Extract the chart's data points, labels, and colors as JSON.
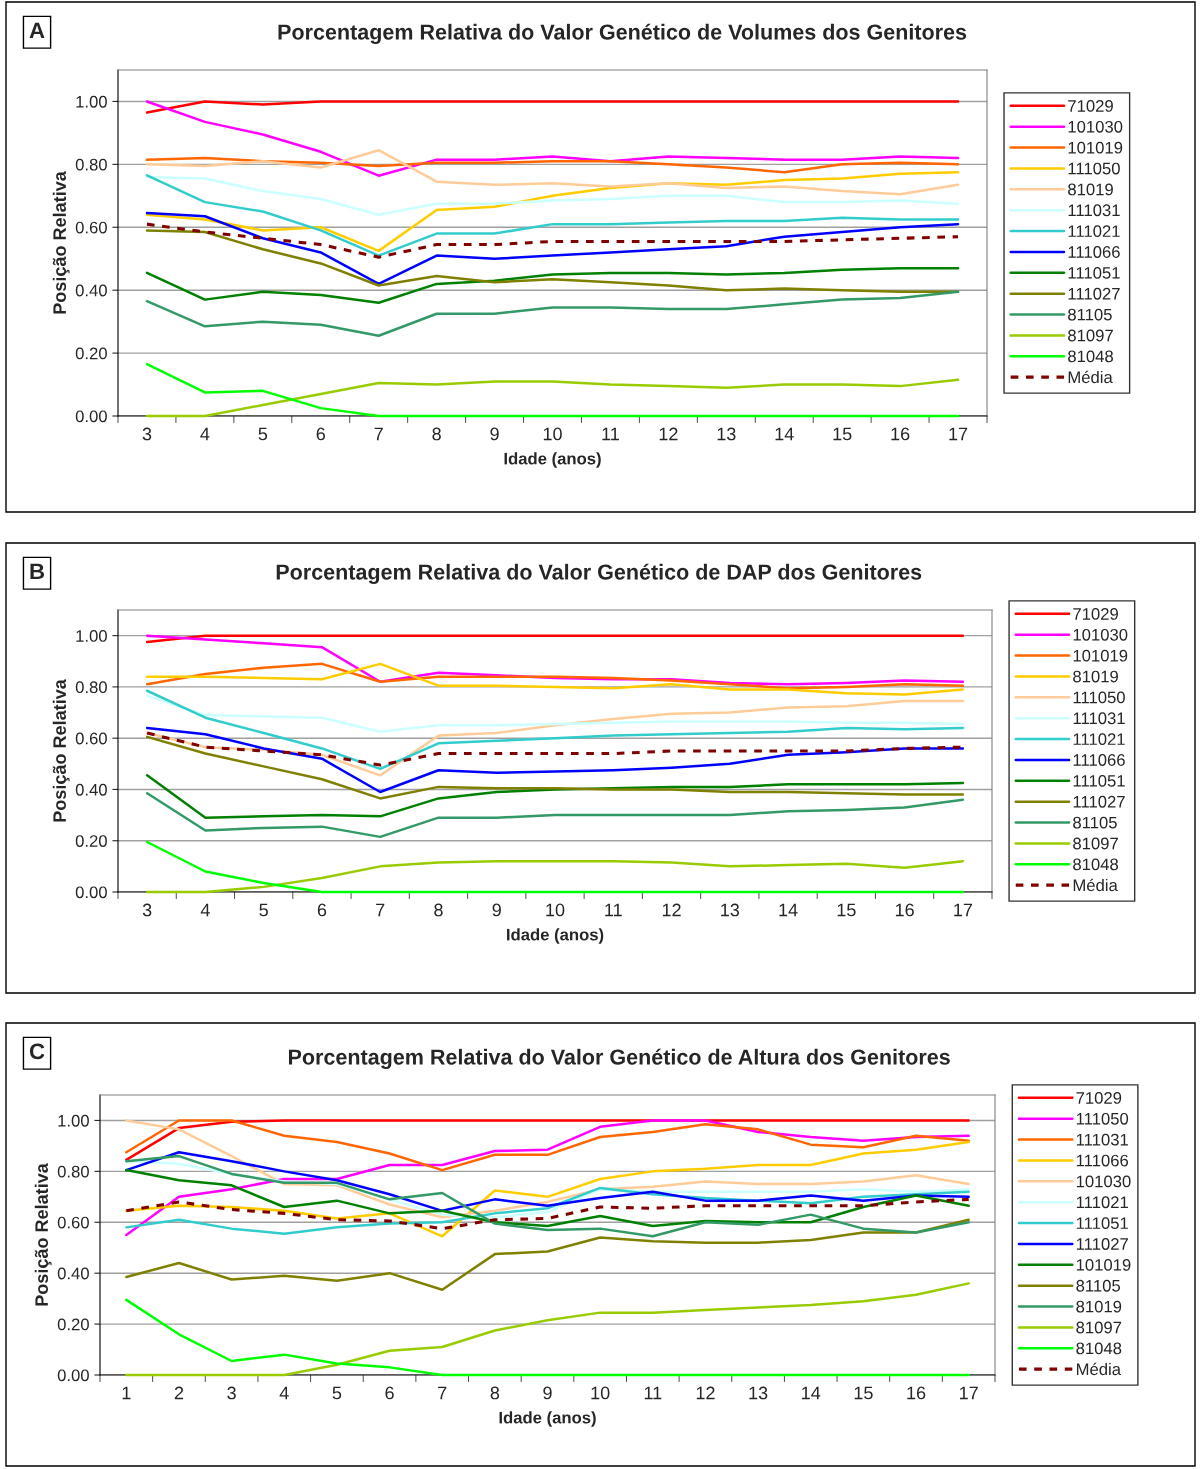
{
  "chart_data": [
    {
      "type": "line",
      "title": "Porcentagem Relativa do Valor Genético de Volumes dos Genitores",
      "xlabel": "Idade (anos)",
      "ylabel": "Posição Relativa",
      "annotations": [
        "A"
      ],
      "categories": [
        "3",
        "4",
        "5",
        "6",
        "7",
        "8",
        "9",
        "10",
        "11",
        "12",
        "13",
        "14",
        "15",
        "16",
        "17"
      ],
      "ylim": [
        0,
        1.1
      ],
      "yticks": [
        {
          "value": 0,
          "label": "0.00"
        },
        {
          "value": 0.2,
          "label": "0.20"
        },
        {
          "value": 0.4,
          "label": "0.40"
        },
        {
          "value": 0.6,
          "label": "0.60"
        },
        {
          "value": 0.8,
          "label": "0.80"
        },
        {
          "value": 1,
          "label": "1.00"
        }
      ],
      "grid": "y",
      "legend": "right",
      "marker": "none",
      "series": [
        {
          "name": "71029",
          "color": "#ff0000",
          "values": [
            0.965,
            1.0,
            0.99,
            1,
            1,
            1,
            1,
            1,
            1,
            1,
            1,
            1,
            1,
            1,
            1
          ]
        },
        {
          "name": "101030",
          "color": "#ff00ff",
          "values": [
            1.0,
            0.935,
            0.895,
            0.84,
            0.764,
            0.815,
            0.815,
            0.825,
            0.81,
            0.825,
            0.82,
            0.815,
            0.815,
            0.825,
            0.82
          ]
        },
        {
          "name": "101019",
          "color": "#ff6600",
          "values": [
            0.815,
            0.82,
            0.81,
            0.805,
            0.795,
            0.805,
            0.805,
            0.81,
            0.81,
            0.8,
            0.79,
            0.775,
            0.8,
            0.805,
            0.8
          ]
        },
        {
          "name": "111050",
          "color": "#ffcc00",
          "values": [
            0.64,
            0.625,
            0.59,
            0.6,
            0.525,
            0.655,
            0.665,
            0.7,
            0.725,
            0.74,
            0.735,
            0.75,
            0.755,
            0.77,
            0.775
          ]
        },
        {
          "name": "81019",
          "color": "#ffcc99",
          "values": [
            0.8,
            0.795,
            0.81,
            0.79,
            0.845,
            0.745,
            0.735,
            0.74,
            0.73,
            0.74,
            0.725,
            0.73,
            0.715,
            0.705,
            0.735
          ]
        },
        {
          "name": "111031",
          "color": "#ccffff",
          "values": [
            0.76,
            0.755,
            0.715,
            0.69,
            0.64,
            0.675,
            0.675,
            0.685,
            0.69,
            0.7,
            0.7,
            0.68,
            0.68,
            0.685,
            0.675
          ]
        },
        {
          "name": "111021",
          "color": "#33cccc",
          "values": [
            0.765,
            0.68,
            0.65,
            0.59,
            0.51,
            0.58,
            0.58,
            0.61,
            0.61,
            0.615,
            0.62,
            0.62,
            0.63,
            0.625,
            0.625
          ]
        },
        {
          "name": "111066",
          "color": "#0000ff",
          "values": [
            0.645,
            0.635,
            0.565,
            0.52,
            0.42,
            0.51,
            0.5,
            0.51,
            0.52,
            0.53,
            0.54,
            0.57,
            0.585,
            0.6,
            0.61
          ]
        },
        {
          "name": "111051",
          "color": "#008000",
          "values": [
            0.455,
            0.37,
            0.395,
            0.385,
            0.36,
            0.42,
            0.43,
            0.45,
            0.455,
            0.455,
            0.45,
            0.455,
            0.465,
            0.47,
            0.47
          ]
        },
        {
          "name": "111027",
          "color": "#808000",
          "values": [
            0.59,
            0.585,
            0.53,
            0.485,
            0.415,
            0.445,
            0.425,
            0.435,
            0.425,
            0.415,
            0.4,
            0.405,
            0.4,
            0.395,
            0.395
          ]
        },
        {
          "name": "81105",
          "color": "#339966",
          "values": [
            0.365,
            0.285,
            0.3,
            0.29,
            0.255,
            0.325,
            0.325,
            0.345,
            0.345,
            0.34,
            0.34,
            0.355,
            0.37,
            0.375,
            0.395
          ]
        },
        {
          "name": "81097",
          "color": "#99cc00",
          "values": [
            0,
            0,
            0.035,
            0.07,
            0.105,
            0.1,
            0.11,
            0.11,
            0.1,
            0.095,
            0.09,
            0.1,
            0.1,
            0.095,
            0.115
          ]
        },
        {
          "name": "81048",
          "color": "#00ff00",
          "values": [
            0.165,
            0.075,
            0.08,
            0.025,
            0,
            0,
            0,
            0,
            0,
            0,
            0,
            0,
            0,
            0,
            0
          ]
        },
        {
          "name": "Média",
          "color": "#800000",
          "line_style": "dashed",
          "values": [
            0.61,
            0.585,
            0.565,
            0.545,
            0.505,
            0.545,
            0.545,
            0.555,
            0.555,
            0.555,
            0.555,
            0.555,
            0.56,
            0.565,
            0.57
          ]
        }
      ]
    },
    {
      "type": "line",
      "title": "Porcentagem Relativa do Valor Genético de DAP dos Genitores",
      "xlabel": "Idade (anos)",
      "ylabel": "Posição Relativa",
      "annotations": [
        "B"
      ],
      "categories": [
        "3",
        "4",
        "5",
        "6",
        "7",
        "8",
        "9",
        "10",
        "11",
        "12",
        "13",
        "14",
        "15",
        "16",
        "17"
      ],
      "ylim": [
        0,
        1.1
      ],
      "yticks": [
        {
          "value": 0,
          "label": "0.00"
        },
        {
          "value": 0.2,
          "label": "0.20"
        },
        {
          "value": 0.4,
          "label": "0.40"
        },
        {
          "value": 0.6,
          "label": "0.60"
        },
        {
          "value": 0.8,
          "label": "0.80"
        },
        {
          "value": 1,
          "label": "1.00"
        }
      ],
      "grid": "y",
      "legend": "right",
      "marker": "none",
      "series": [
        {
          "name": "71029",
          "color": "#ff0000",
          "values": [
            0.975,
            1,
            1,
            1,
            1,
            1,
            1,
            1,
            1,
            1,
            1,
            1,
            1,
            1,
            1
          ]
        },
        {
          "name": "101030",
          "color": "#ff00ff",
          "values": [
            1.0,
            0.985,
            0.97,
            0.955,
            0.82,
            0.855,
            0.845,
            0.835,
            0.83,
            0.83,
            0.815,
            0.81,
            0.815,
            0.825,
            0.82
          ]
        },
        {
          "name": "101019",
          "color": "#ff6600",
          "values": [
            0.81,
            0.85,
            0.875,
            0.89,
            0.82,
            0.84,
            0.84,
            0.84,
            0.835,
            0.825,
            0.81,
            0.795,
            0.8,
            0.81,
            0.805
          ]
        },
        {
          "name": "81019",
          "color": "#ffcc00",
          "values": [
            0.84,
            0.84,
            0.835,
            0.83,
            0.89,
            0.805,
            0.805,
            0.8,
            0.795,
            0.81,
            0.79,
            0.79,
            0.775,
            0.77,
            0.79
          ]
        },
        {
          "name": "111050",
          "color": "#ffcc99",
          "values": [
            0.62,
            0.565,
            0.555,
            0.535,
            0.455,
            0.61,
            0.62,
            0.65,
            0.675,
            0.695,
            0.7,
            0.72,
            0.725,
            0.745,
            0.745
          ]
        },
        {
          "name": "111031",
          "color": "#ccffff",
          "values": [
            0.765,
            0.69,
            0.685,
            0.68,
            0.625,
            0.65,
            0.65,
            0.655,
            0.66,
            0.665,
            0.665,
            0.665,
            0.66,
            0.66,
            0.655
          ]
        },
        {
          "name": "111021",
          "color": "#33cccc",
          "values": [
            0.785,
            0.68,
            0.62,
            0.56,
            0.48,
            0.58,
            0.59,
            0.6,
            0.61,
            0.615,
            0.62,
            0.625,
            0.64,
            0.635,
            0.64
          ]
        },
        {
          "name": "111066",
          "color": "#0000ff",
          "values": [
            0.64,
            0.615,
            0.56,
            0.52,
            0.39,
            0.475,
            0.465,
            0.47,
            0.475,
            0.485,
            0.5,
            0.535,
            0.545,
            0.56,
            0.56
          ]
        },
        {
          "name": "111051",
          "color": "#008000",
          "values": [
            0.455,
            0.29,
            0.295,
            0.3,
            0.295,
            0.365,
            0.39,
            0.4,
            0.405,
            0.41,
            0.41,
            0.42,
            0.42,
            0.42,
            0.425
          ]
        },
        {
          "name": "111027",
          "color": "#808000",
          "values": [
            0.605,
            0.54,
            0.49,
            0.44,
            0.365,
            0.41,
            0.405,
            0.405,
            0.4,
            0.4,
            0.39,
            0.39,
            0.385,
            0.38,
            0.38
          ]
        },
        {
          "name": "81105",
          "color": "#339966",
          "values": [
            0.385,
            0.24,
            0.25,
            0.255,
            0.215,
            0.29,
            0.29,
            0.3,
            0.3,
            0.3,
            0.3,
            0.315,
            0.32,
            0.33,
            0.36
          ]
        },
        {
          "name": "81097",
          "color": "#99cc00",
          "values": [
            0,
            0,
            0.02,
            0.055,
            0.1,
            0.115,
            0.12,
            0.12,
            0.12,
            0.115,
            0.1,
            0.105,
            0.11,
            0.095,
            0.12
          ]
        },
        {
          "name": "81048",
          "color": "#00ff00",
          "values": [
            0.195,
            0.08,
            0.035,
            0,
            0,
            0,
            0,
            0,
            0,
            0,
            0,
            0,
            0,
            0,
            0
          ]
        },
        {
          "name": "Média",
          "color": "#800000",
          "line_style": "dashed",
          "values": [
            0.62,
            0.565,
            0.55,
            0.535,
            0.495,
            0.54,
            0.54,
            0.54,
            0.54,
            0.55,
            0.55,
            0.55,
            0.55,
            0.56,
            0.565
          ]
        }
      ]
    },
    {
      "type": "line",
      "title": "Porcentagem Relativa do Valor Genético de Altura dos Genitores",
      "xlabel": "Idade (anos)",
      "ylabel": "Posição Relativa",
      "annotations": [
        "C"
      ],
      "categories": [
        "1",
        "2",
        "3",
        "4",
        "5",
        "6",
        "7",
        "8",
        "9",
        "10",
        "11",
        "12",
        "13",
        "14",
        "15",
        "16",
        "17"
      ],
      "ylim": [
        0,
        1.1
      ],
      "yticks": [
        {
          "value": 0,
          "label": "0.00"
        },
        {
          "value": 0.2,
          "label": "0.20"
        },
        {
          "value": 0.4,
          "label": "0.40"
        },
        {
          "value": 0.6,
          "label": "0.60"
        },
        {
          "value": 0.8,
          "label": "0.80"
        },
        {
          "value": 1,
          "label": "1.00"
        }
      ],
      "grid": "y",
      "legend": "right",
      "marker": "none",
      "series": [
        {
          "name": "71029",
          "color": "#ff0000",
          "values": [
            0.845,
            0.97,
            0.995,
            1,
            1,
            1,
            1,
            1,
            1,
            1,
            1,
            1,
            1,
            1,
            1,
            1,
            1
          ]
        },
        {
          "name": "111050",
          "color": "#ff00ff",
          "values": [
            0.55,
            0.7,
            0.73,
            0.77,
            0.77,
            0.825,
            0.825,
            0.88,
            0.885,
            0.975,
            1.0,
            1.0,
            0.955,
            0.935,
            0.92,
            0.935,
            0.94
          ]
        },
        {
          "name": "111031",
          "color": "#ff6600",
          "values": [
            0.875,
            1.0,
            1.0,
            0.94,
            0.915,
            0.87,
            0.805,
            0.865,
            0.865,
            0.935,
            0.955,
            0.985,
            0.965,
            0.905,
            0.895,
            0.94,
            0.92
          ]
        },
        {
          "name": "111066",
          "color": "#ffcc00",
          "values": [
            0.645,
            0.665,
            0.66,
            0.645,
            0.615,
            0.635,
            0.545,
            0.725,
            0.7,
            0.77,
            0.8,
            0.81,
            0.825,
            0.825,
            0.87,
            0.885,
            0.915
          ]
        },
        {
          "name": "101030",
          "color": "#ffcc99",
          "values": [
            1.0,
            0.965,
            0.86,
            0.75,
            0.745,
            0.67,
            0.62,
            0.645,
            0.68,
            0.73,
            0.74,
            0.76,
            0.75,
            0.75,
            0.76,
            0.785,
            0.75
          ]
        },
        {
          "name": "111021",
          "color": "#ccffff",
          "values": [
            0.84,
            0.83,
            0.79,
            0.76,
            0.75,
            0.69,
            0.63,
            0.62,
            0.64,
            0.73,
            0.72,
            0.72,
            0.72,
            0.72,
            0.73,
            0.72,
            0.73
          ]
        },
        {
          "name": "111051",
          "color": "#33cccc",
          "values": [
            0.58,
            0.61,
            0.575,
            0.555,
            0.58,
            0.595,
            0.6,
            0.635,
            0.655,
            0.735,
            0.71,
            0.695,
            0.685,
            0.675,
            0.7,
            0.71,
            0.72
          ]
        },
        {
          "name": "111027",
          "color": "#0000ff",
          "values": [
            0.805,
            0.875,
            0.84,
            0.8,
            0.765,
            0.71,
            0.645,
            0.69,
            0.665,
            0.695,
            0.72,
            0.685,
            0.685,
            0.705,
            0.685,
            0.705,
            0.7
          ]
        },
        {
          "name": "101019",
          "color": "#008000",
          "values": [
            0.805,
            0.765,
            0.745,
            0.66,
            0.685,
            0.635,
            0.645,
            0.6,
            0.585,
            0.625,
            0.585,
            0.605,
            0.6,
            0.6,
            0.66,
            0.705,
            0.665
          ]
        },
        {
          "name": "81105",
          "color": "#808000",
          "values": [
            0.385,
            0.44,
            0.375,
            0.39,
            0.37,
            0.4,
            0.335,
            0.475,
            0.485,
            0.54,
            0.525,
            0.52,
            0.52,
            0.53,
            0.56,
            0.56,
            0.61
          ]
        },
        {
          "name": "81019",
          "color": "#339966",
          "values": [
            0.84,
            0.86,
            0.79,
            0.755,
            0.755,
            0.69,
            0.715,
            0.595,
            0.57,
            0.575,
            0.545,
            0.6,
            0.59,
            0.63,
            0.575,
            0.56,
            0.6
          ]
        },
        {
          "name": "81097",
          "color": "#99cc00",
          "values": [
            0,
            0,
            0,
            0,
            0.04,
            0.095,
            0.11,
            0.175,
            0.215,
            0.245,
            0.245,
            0.255,
            0.265,
            0.275,
            0.29,
            0.315,
            0.36
          ]
        },
        {
          "name": "81048",
          "color": "#00ff00",
          "values": [
            0.295,
            0.16,
            0.055,
            0.08,
            0.045,
            0.03,
            0,
            0,
            0,
            0,
            0,
            0,
            0,
            0,
            0,
            0,
            0
          ]
        },
        {
          "name": "Média",
          "color": "#800000",
          "line_style": "dashed",
          "values": [
            0.645,
            0.68,
            0.65,
            0.635,
            0.61,
            0.605,
            0.575,
            0.61,
            0.615,
            0.66,
            0.655,
            0.665,
            0.665,
            0.665,
            0.665,
            0.68,
            0.69
          ]
        }
      ]
    }
  ]
}
